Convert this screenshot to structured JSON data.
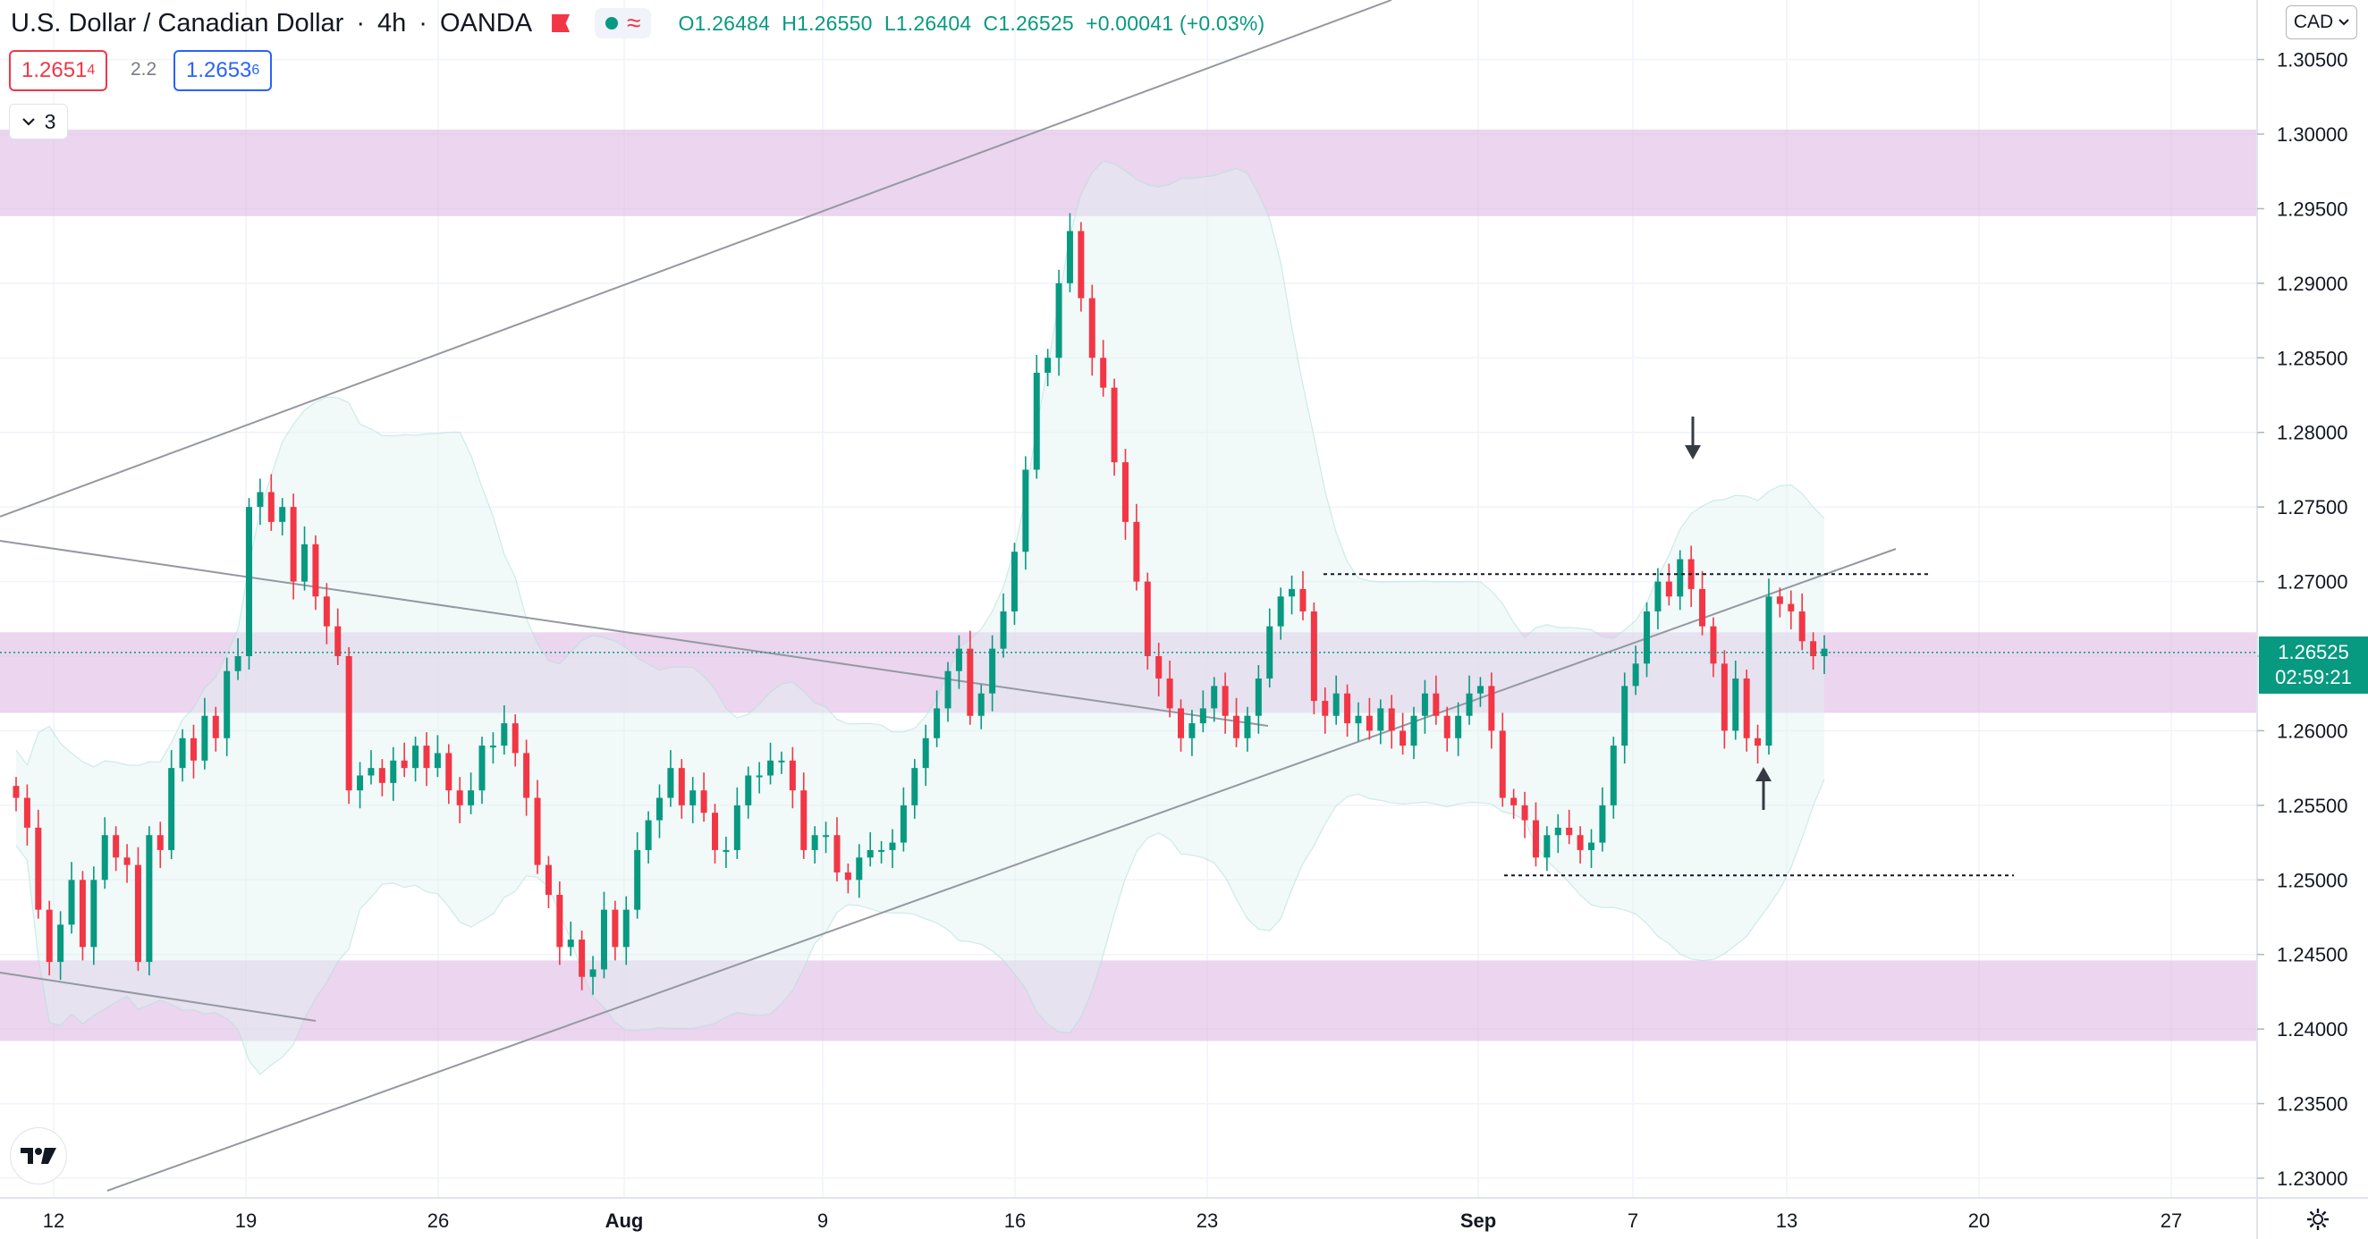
{
  "header": {
    "symbol": "U.S. Dollar / Canadian Dollar",
    "interval": "4h",
    "exchange": "OANDA",
    "ohlc": {
      "open": "O1.26484",
      "high": "H1.26550",
      "low": "L1.26404",
      "close": "C1.26525",
      "change": "+0.00041 (+0.03%)"
    },
    "sell_price_main": "1.2651",
    "sell_price_sup": "4",
    "spread": "2.2",
    "buy_price_main": "1.2653",
    "buy_price_sup": "6",
    "indicators_count": "3"
  },
  "currency_selector": "CAD",
  "last_price": {
    "value": "1.26525",
    "countdown": "02:59:21",
    "color": "#089981"
  },
  "colors": {
    "up": "#089981",
    "down": "#f23645",
    "zone": "#e1bee7",
    "band": "#e0f2f1",
    "trendline": "#9598a1"
  },
  "icons": [
    "flag-icon",
    "eye-dot-icon",
    "approx-icon",
    "chevron-down-icon",
    "tradingview-logo-icon",
    "gear-icon",
    "arrow-down-icon",
    "arrow-up-icon"
  ],
  "chart_data": {
    "type": "candlestick",
    "y_axis": {
      "min": 1.23,
      "max": 1.305,
      "ticks": [
        "1.30500",
        "1.30000",
        "1.29500",
        "1.29000",
        "1.28500",
        "1.28000",
        "1.27500",
        "1.27000",
        "1.26500",
        "1.26000",
        "1.25500",
        "1.25000",
        "1.24500",
        "1.24000",
        "1.23500",
        "1.23000"
      ]
    },
    "x_axis": {
      "ticks": [
        "12",
        "19",
        "26",
        "Aug",
        "9",
        "16",
        "23",
        "Sep",
        "7",
        "13",
        "20",
        "27"
      ]
    },
    "zones": [
      [
        1.2945,
        1.3003
      ],
      [
        1.2612,
        1.2666
      ],
      [
        1.2392,
        1.2446
      ]
    ],
    "horizontal_levels": [
      1.2705,
      1.2503
    ],
    "current_price": 1.26525,
    "closes": [
      1.2555,
      1.2535,
      1.248,
      1.2445,
      1.247,
      1.25,
      1.2455,
      1.25,
      1.253,
      1.2515,
      1.251,
      1.2445,
      1.253,
      1.252,
      1.2575,
      1.2595,
      1.258,
      1.261,
      1.2595,
      1.264,
      1.265,
      1.275,
      1.276,
      1.274,
      1.275,
      1.27,
      1.2725,
      1.269,
      1.267,
      1.265,
      1.256,
      1.257,
      1.2575,
      1.2565,
      1.258,
      1.2575,
      1.259,
      1.2575,
      1.2585,
      1.256,
      1.255,
      1.256,
      1.259,
      1.259,
      1.2605,
      1.2585,
      1.2555,
      1.251,
      1.249,
      1.2455,
      1.246,
      1.2435,
      1.244,
      1.248,
      1.2455,
      1.248,
      1.252,
      1.254,
      1.2555,
      1.2575,
      1.255,
      1.256,
      1.2545,
      1.252,
      1.252,
      1.255,
      1.257,
      1.257,
      1.258,
      1.258,
      1.256,
      1.252,
      1.253,
      1.253,
      1.2505,
      1.25,
      1.2515,
      1.252,
      1.252,
      1.2525,
      1.255,
      1.2575,
      1.2595,
      1.2615,
      1.264,
      1.2655,
      1.261,
      1.2625,
      1.2655,
      1.268,
      1.272,
      1.2775,
      1.284,
      1.285,
      1.29,
      1.2935,
      1.289,
      1.285,
      1.283,
      1.278,
      1.274,
      1.27,
      1.265,
      1.2635,
      1.2615,
      1.2595,
      1.2605,
      1.2615,
      1.263,
      1.261,
      1.2595,
      1.261,
      1.2635,
      1.267,
      1.269,
      1.2695,
      1.268,
      1.262,
      1.261,
      1.2625,
      1.2605,
      1.261,
      1.26,
      1.2615,
      1.26,
      1.259,
      1.261,
      1.2625,
      1.261,
      1.2595,
      1.261,
      1.2625,
      1.263,
      1.26,
      1.2555,
      1.255,
      1.254,
      1.2515,
      1.253,
      1.2535,
      1.253,
      1.252,
      1.2525,
      1.255,
      1.259,
      1.263,
      1.2645,
      1.268,
      1.27,
      1.269,
      1.2715,
      1.2695,
      1.267,
      1.2645,
      1.26,
      1.2635,
      1.2595,
      1.259,
      1.269,
      1.2685,
      1.268,
      1.266,
      1.265,
      1.2655
    ]
  }
}
